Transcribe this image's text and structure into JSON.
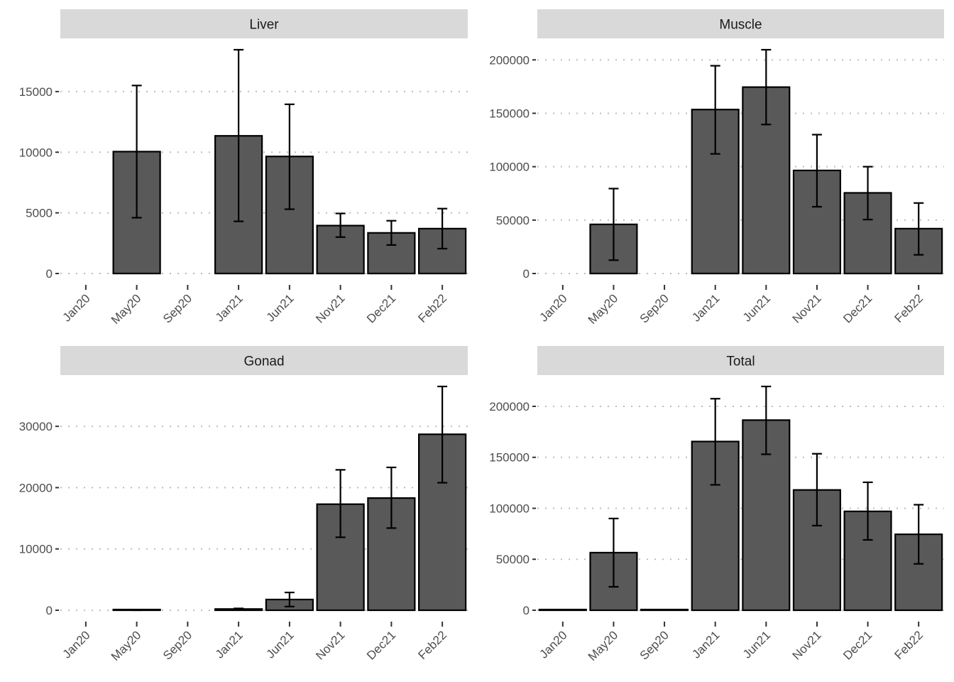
{
  "chart_data": [
    {
      "type": "bar",
      "title": "Liver",
      "xlabel": "",
      "ylabel": "",
      "categories": [
        "Jan20",
        "May20",
        "Sep20",
        "Jan21",
        "Jun21",
        "Nov21",
        "Dec21",
        "Feb22"
      ],
      "values": [
        null,
        10050,
        null,
        11350,
        9650,
        3950,
        3350,
        3700
      ],
      "error_lower": [
        null,
        4600,
        null,
        4300,
        5300,
        3000,
        2350,
        2050
      ],
      "error_upper": [
        null,
        15500,
        null,
        18450,
        13950,
        4950,
        4350,
        5350
      ],
      "ylim": [
        0,
        18450
      ],
      "yticks": [
        0,
        5000,
        10000,
        15000
      ],
      "ytick_labels": [
        "0",
        "5000",
        "10000",
        "15000"
      ],
      "grid": "horizontal-dotted"
    },
    {
      "type": "bar",
      "title": "Muscle",
      "xlabel": "",
      "ylabel": "",
      "categories": [
        "Jan20",
        "May20",
        "Sep20",
        "Jan21",
        "Jun21",
        "Nov21",
        "Dec21",
        "Feb22"
      ],
      "values": [
        null,
        46000,
        null,
        153500,
        174500,
        96500,
        75500,
        42000
      ],
      "error_lower": [
        null,
        12500,
        null,
        112000,
        139500,
        62500,
        50500,
        17500
      ],
      "error_upper": [
        null,
        79500,
        null,
        194500,
        209500,
        130000,
        100000,
        66000
      ],
      "ylim": [
        0,
        209500
      ],
      "yticks": [
        0,
        50000,
        100000,
        150000,
        200000
      ],
      "ytick_labels": [
        "0",
        "50000",
        "100000",
        "150000",
        "200000"
      ],
      "grid": "horizontal-dotted"
    },
    {
      "type": "bar",
      "title": "Gonad",
      "xlabel": "",
      "ylabel": "",
      "categories": [
        "Jan20",
        "May20",
        "Sep20",
        "Jan21",
        "Jun21",
        "Nov21",
        "Dec21",
        "Feb22"
      ],
      "values": [
        null,
        50,
        null,
        200,
        1750,
        17300,
        18300,
        28700
      ],
      "error_lower": [
        null,
        0,
        null,
        100,
        600,
        11900,
        13400,
        20800
      ],
      "error_upper": [
        null,
        100,
        null,
        300,
        2900,
        22900,
        23300,
        36500
      ],
      "ylim": [
        0,
        36500
      ],
      "yticks": [
        0,
        10000,
        20000,
        30000
      ],
      "ytick_labels": [
        "0",
        "10000",
        "20000",
        "30000"
      ],
      "grid": "horizontal-dotted"
    },
    {
      "type": "bar",
      "title": "Total",
      "xlabel": "",
      "ylabel": "",
      "categories": [
        "Jan20",
        "May20",
        "Sep20",
        "Jan21",
        "Jun21",
        "Nov21",
        "Dec21",
        "Feb22"
      ],
      "values": [
        300,
        56500,
        300,
        165500,
        186500,
        118000,
        97000,
        74500
      ],
      "error_lower": [
        300,
        23000,
        300,
        123000,
        153000,
        83000,
        69000,
        45500
      ],
      "error_upper": [
        300,
        90000,
        300,
        207500,
        219500,
        153500,
        125500,
        103500
      ],
      "ylim": [
        0,
        219500
      ],
      "yticks": [
        0,
        50000,
        100000,
        150000,
        200000
      ],
      "ytick_labels": [
        "0",
        "50000",
        "100000",
        "150000",
        "200000"
      ],
      "grid": "horizontal-dotted"
    }
  ],
  "colors": {
    "bar_fill": "#595959",
    "bar_outline": "#000000",
    "strip_background": "#d9d9d9",
    "grid": "#bdbdbd",
    "tick_label": "#4d4d4d",
    "strip_text": "#1a1a1a"
  }
}
